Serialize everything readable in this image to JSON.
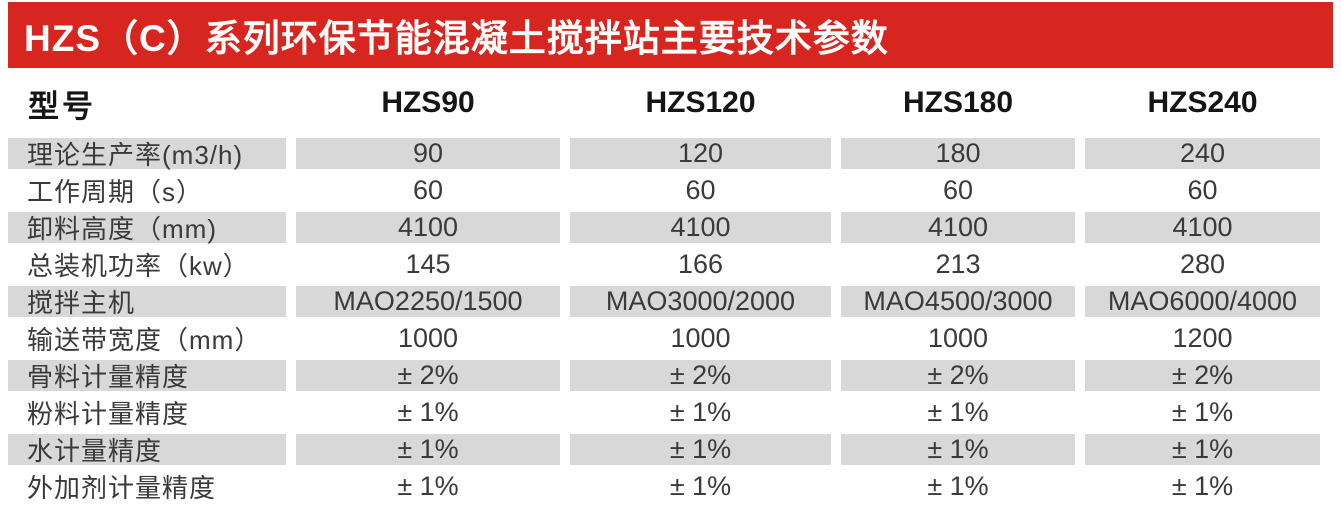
{
  "banner": {
    "title": "HZS（C）系列环保节能混凝土搅拌站主要技术参数"
  },
  "table": {
    "model_header": "型号",
    "models": [
      "HZS90",
      "HZS120",
      "HZS180",
      "HZS240"
    ],
    "rows": [
      {
        "label": "理论生产率(m3/h)",
        "values": [
          "90",
          "120",
          "180",
          "240"
        ]
      },
      {
        "label": "工作周期（s）",
        "values": [
          "60",
          "60",
          "60",
          "60"
        ]
      },
      {
        "label": "卸料高度（mm)",
        "values": [
          "4100",
          "4100",
          "4100",
          "4100"
        ]
      },
      {
        "label": "总装机功率（kw）",
        "values": [
          "145",
          "166",
          "213",
          "280"
        ]
      },
      {
        "label": "搅拌主机",
        "values": [
          "MAO2250/1500",
          "MAO3000/2000",
          "MAO4500/3000",
          "MAO6000/4000"
        ]
      },
      {
        "label": "输送带宽度（mm）",
        "values": [
          "1000",
          "1000",
          "1000",
          "1200"
        ]
      },
      {
        "label": "骨料计量精度",
        "values": [
          "± 2%",
          "± 2%",
          "± 2%",
          "± 2%"
        ]
      },
      {
        "label": "粉料计量精度",
        "values": [
          "± 1%",
          "± 1%",
          "± 1%",
          "± 1%"
        ]
      },
      {
        "label": "水计量精度",
        "values": [
          "± 1%",
          "± 1%",
          "± 1%",
          "± 1%"
        ]
      },
      {
        "label": "外加剂计量精度",
        "values": [
          "± 1%",
          "± 1%",
          "± 1%",
          "± 1%"
        ]
      }
    ]
  },
  "colors": {
    "accent_red": "#d7261f",
    "row_gray": "#d8d8d8",
    "text_dark": "#3a3a3a"
  }
}
